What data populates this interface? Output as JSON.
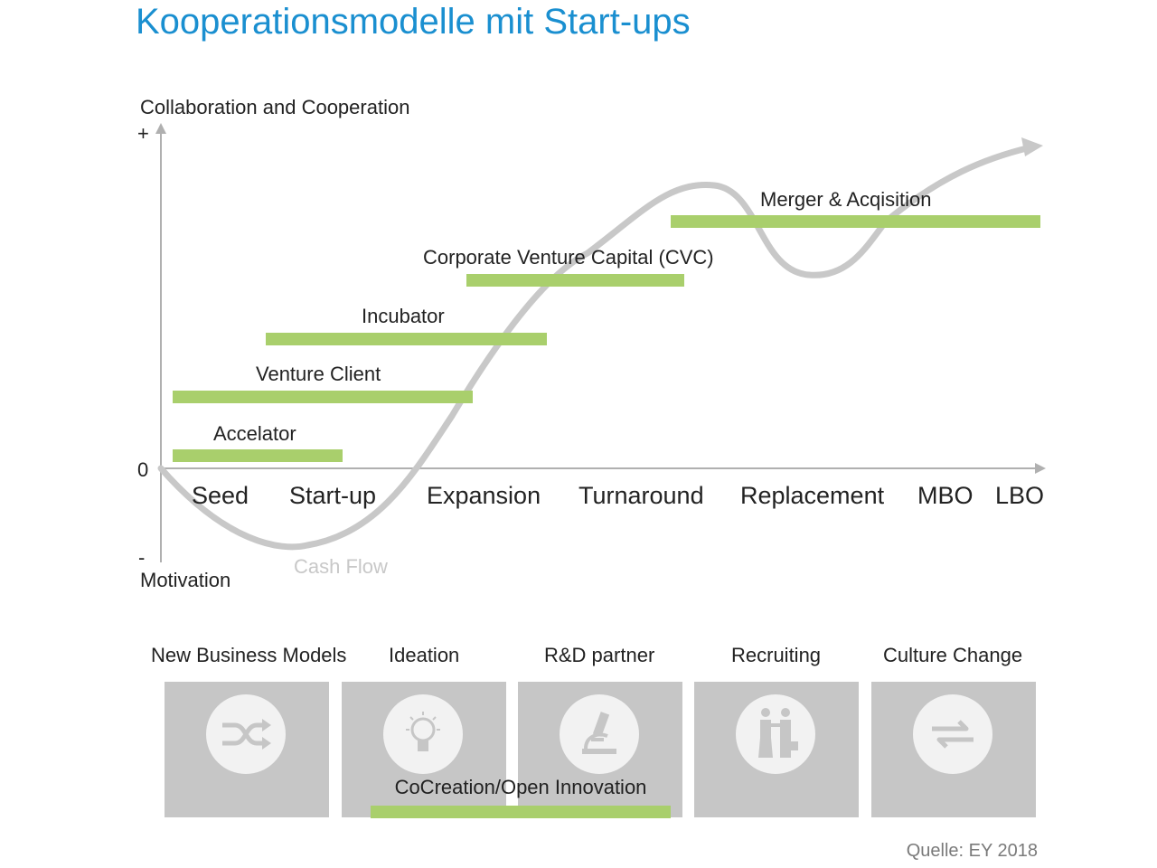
{
  "title": "Kooperationsmodelle mit Start-ups",
  "axis": {
    "y_label": "Collaboration and Cooperation",
    "y_plus": "+",
    "y_zero": "0",
    "y_minus": "-",
    "y_bottom_label": "Motivation"
  },
  "stages": [
    "Seed",
    "Start-up",
    "Expansion",
    "Turnaround",
    "Replacement",
    "MBO",
    "LBO"
  ],
  "curve_label": "Cash Flow",
  "models": [
    {
      "label": "Accelator"
    },
    {
      "label": "Venture Client"
    },
    {
      "label": "Incubator"
    },
    {
      "label": "Corporate Venture Capital (CVC)"
    },
    {
      "label": "Merger & Acqisition"
    }
  ],
  "motivations": [
    {
      "label": "New Business Models",
      "icon": "shuffle-icon"
    },
    {
      "label": "Ideation",
      "icon": "lightbulb-icon"
    },
    {
      "label": "R&D partner",
      "icon": "microscope-icon"
    },
    {
      "label": "Recruiting",
      "icon": "handshake-icon"
    },
    {
      "label": "Culture Change",
      "icon": "exchange-arrows-icon"
    }
  ],
  "cocreation": {
    "label": "CoCreation/Open Innovation"
  },
  "source": "Quelle: EY 2018",
  "colors": {
    "title": "#1a8fd0",
    "bar": "#a9cf6c",
    "curve": "#c8c8c8",
    "tile": "#c6c6c6"
  }
}
